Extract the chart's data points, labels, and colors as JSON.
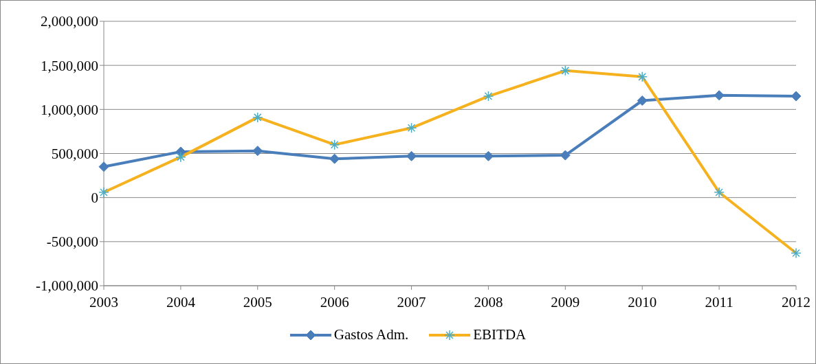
{
  "chart_data": {
    "type": "line",
    "categories": [
      "2003",
      "2004",
      "2005",
      "2006",
      "2007",
      "2008",
      "2009",
      "2010",
      "2011",
      "2012"
    ],
    "series": [
      {
        "name": "Gastos Adm.",
        "color": "#4a7ebb",
        "marker": "diamond",
        "values": [
          350000,
          520000,
          530000,
          440000,
          470000,
          470000,
          480000,
          1100000,
          1160000,
          1150000
        ]
      },
      {
        "name": "EBITDA",
        "color": "#f5b21e",
        "marker": "cross",
        "values": [
          60000,
          460000,
          910000,
          600000,
          790000,
          1150000,
          1440000,
          1370000,
          60000,
          -630000
        ]
      }
    ],
    "ylim": [
      -1000000,
      2000000
    ],
    "yticks": [
      {
        "value": -1000000,
        "label": "-1,000,000"
      },
      {
        "value": -500000,
        "label": "-500,000"
      },
      0,
      {
        "value": 500000,
        "label": "500,000"
      },
      {
        "value": 1000000,
        "label": "1,000,000"
      },
      {
        "value": 1500000,
        "label": "1,500,000"
      },
      {
        "value": 2000000,
        "label": "2,000,000"
      }
    ],
    "grid": "y",
    "legend": "bottom"
  }
}
